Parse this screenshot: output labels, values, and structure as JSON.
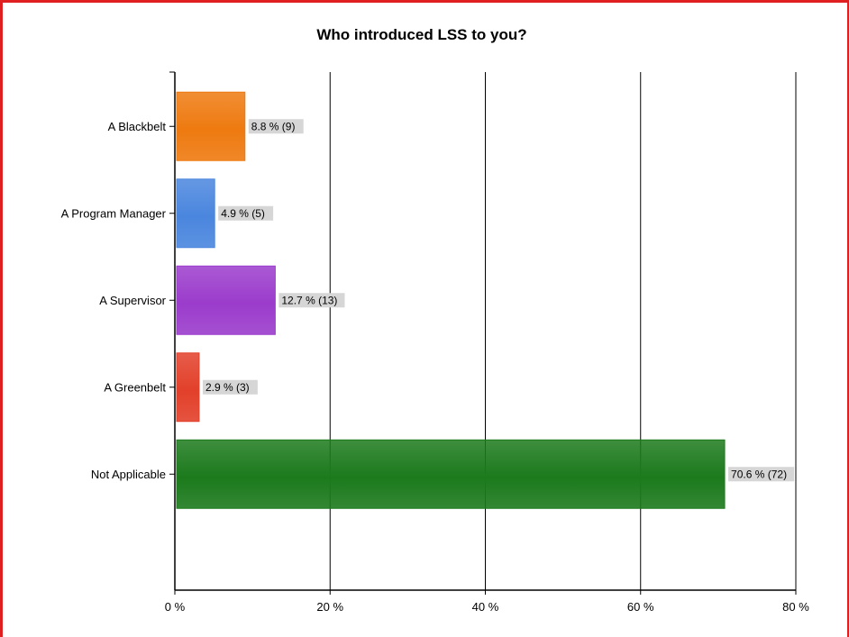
{
  "chart_data": {
    "type": "bar",
    "orientation": "horizontal",
    "title": "Who introduced LSS to you?",
    "xlabel": "",
    "ylabel": "",
    "categories": [
      "A Blackbelt",
      "A Program Manager",
      "A Supervisor",
      "A Greenbelt",
      "Not Applicable"
    ],
    "values": [
      8.8,
      4.9,
      12.7,
      2.9,
      70.6
    ],
    "counts": [
      9,
      5,
      13,
      3,
      72
    ],
    "data_labels": [
      "8.8 % (9)",
      "4.9 % (5)",
      "12.7 % (13)",
      "2.9 % (3)",
      "70.6 % (72)"
    ],
    "colors": [
      "#ee7a10",
      "#4a86de",
      "#9b3ccc",
      "#e2402a",
      "#1c7a1c"
    ],
    "xlim": [
      0,
      80
    ],
    "xticks": [
      0,
      20,
      40,
      60,
      80
    ],
    "xtick_labels": [
      "0 %",
      "20 %",
      "40 %",
      "60 %",
      "80 %"
    ],
    "grid": true,
    "legend": "none"
  }
}
